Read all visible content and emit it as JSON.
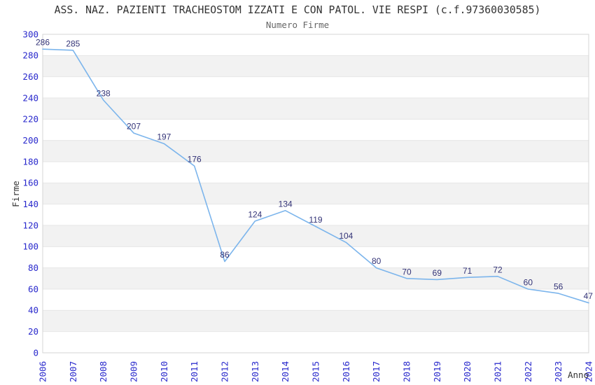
{
  "chart": {
    "title": "ASS. NAZ. PAZIENTI TRACHEOSTOM IZZATI E CON PATOL. VIE RESPI (c.f.97360030585)",
    "subtitle": "Numero Firme",
    "y_axis_title": "Firme",
    "x_axis_title": "Anno"
  },
  "chart_data": {
    "type": "line",
    "title": "ASS. NAZ. PAZIENTI TRACHEOSTOM IZZATI E CON PATOL. VIE RESPI (c.f.97360030585)",
    "subtitle": "Numero Firme",
    "xlabel": "Anno",
    "ylabel": "Firme",
    "categories": [
      "2006",
      "2007",
      "2008",
      "2009",
      "2010",
      "2011",
      "2012",
      "2013",
      "2014",
      "2015",
      "2016",
      "2017",
      "2018",
      "2019",
      "2020",
      "2021",
      "2022",
      "2023",
      "2024"
    ],
    "series": [
      {
        "name": "Numero Firme",
        "values": [
          286,
          285,
          238,
          207,
          197,
          176,
          86,
          124,
          134,
          119,
          104,
          80,
          70,
          69,
          71,
          72,
          60,
          56,
          47
        ]
      }
    ],
    "ylim": [
      0,
      300
    ],
    "ytick_step": 20,
    "grid": true,
    "alternate_bands": true,
    "legend_position": "none",
    "data_labels_visible": true,
    "colors": {
      "line": "#7cb5ec",
      "band": "#f2f2f2",
      "grid": "#e6e6e6",
      "border": "#d6d6d6",
      "tick_label": "#2929cc",
      "data_label": "#333377",
      "title": "#333333",
      "subtitle": "#666666"
    }
  }
}
